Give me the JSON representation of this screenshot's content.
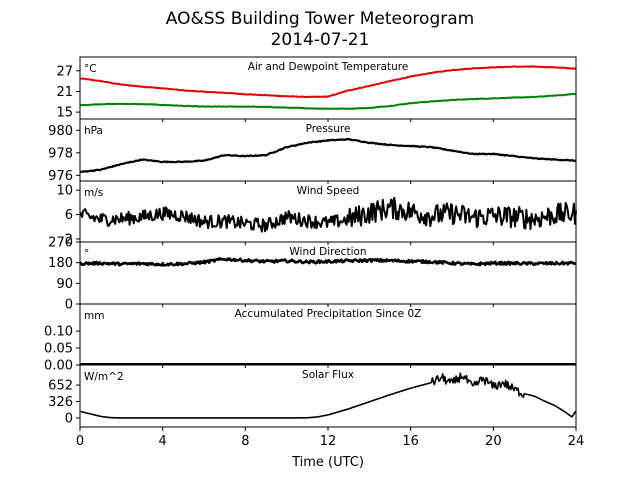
{
  "figure": {
    "title": "AO&SS Building Tower Meteorogram",
    "subtitle": "2014-07-21",
    "xlabel": "Time (UTC)",
    "x_ticks": [
      "0",
      "4",
      "8",
      "12",
      "16",
      "20",
      "24"
    ]
  },
  "chart_data": [
    {
      "type": "line",
      "title": "Air and Dewpoint Temperature",
      "unit": "°C",
      "xlim": [
        0,
        24
      ],
      "ylim": [
        13,
        31
      ],
      "yticks": [
        15,
        21,
        27
      ],
      "ytick_labels": [
        "15",
        "21",
        "27"
      ],
      "series": [
        {
          "color": "#e00000",
          "x": [
            0,
            1,
            2,
            3,
            4,
            5,
            6,
            7,
            8,
            9,
            10,
            11,
            12,
            13,
            14,
            15,
            16,
            17,
            18,
            19,
            20,
            21,
            22,
            23,
            24
          ],
          "values": [
            24.8,
            24.0,
            23.0,
            22.4,
            21.9,
            21.3,
            20.9,
            20.6,
            20.2,
            19.9,
            19.6,
            19.4,
            19.5,
            21.3,
            22.6,
            24.0,
            25.3,
            26.4,
            27.2,
            27.7,
            28.0,
            28.2,
            28.2,
            28.0,
            27.6
          ]
        },
        {
          "color": "#008000",
          "x": [
            0,
            1,
            2,
            3,
            4,
            5,
            6,
            7,
            8,
            9,
            10,
            11,
            12,
            13,
            14,
            15,
            16,
            17,
            18,
            19,
            20,
            21,
            22,
            23,
            24
          ],
          "values": [
            17.0,
            17.3,
            17.4,
            17.3,
            17.1,
            16.8,
            16.6,
            16.6,
            16.6,
            16.5,
            16.3,
            16.1,
            16.0,
            16.0,
            16.2,
            16.8,
            17.6,
            18.1,
            18.5,
            18.8,
            19.0,
            19.2,
            19.4,
            19.8,
            20.3
          ]
        }
      ]
    },
    {
      "type": "line",
      "title": "Pressure",
      "unit": "hPa",
      "xlim": [
        0,
        24
      ],
      "ylim": [
        975.5,
        981.0
      ],
      "yticks": [
        976,
        978,
        980
      ],
      "ytick_labels": [
        "976",
        "978",
        "980"
      ],
      "series": [
        {
          "color": "#000000",
          "x": [
            0,
            1,
            2,
            3,
            4,
            5,
            6,
            7,
            8,
            9,
            10,
            11,
            12,
            13,
            14,
            15,
            16,
            17,
            18,
            19,
            20,
            21,
            22,
            23,
            24
          ],
          "values": [
            976.3,
            976.5,
            977.0,
            977.4,
            977.2,
            977.2,
            977.3,
            977.8,
            977.7,
            977.8,
            978.5,
            978.9,
            979.1,
            979.2,
            978.9,
            978.7,
            978.6,
            978.5,
            978.2,
            977.9,
            977.9,
            977.7,
            977.5,
            977.4,
            977.3
          ]
        }
      ]
    },
    {
      "type": "line",
      "title": "Wind Speed",
      "unit": "m/s",
      "xlim": [
        0,
        24
      ],
      "ylim": [
        1.5,
        11.5
      ],
      "yticks": [
        2,
        6,
        10
      ],
      "ytick_labels": [
        "2",
        "6",
        "10"
      ],
      "series": [
        {
          "color": "#000000",
          "x": [
            0,
            1,
            2,
            3,
            4,
            5,
            6,
            7,
            8,
            9,
            10,
            11,
            12,
            13,
            14,
            15,
            16,
            17,
            18,
            19,
            20,
            21,
            22,
            23,
            24
          ],
          "values": [
            6.0,
            5.2,
            5.3,
            5.6,
            6.2,
            5.8,
            4.8,
            4.9,
            4.5,
            4.2,
            5.6,
            5.0,
            4.6,
            5.2,
            6.3,
            7.1,
            6.5,
            5.8,
            6.2,
            5.5,
            5.8,
            5.6,
            5.3,
            6.0,
            6.2
          ]
        }
      ]
    },
    {
      "type": "line",
      "title": "Wind Direction",
      "unit": "°",
      "xlim": [
        0,
        24
      ],
      "ylim": [
        0,
        270
      ],
      "yticks": [
        0,
        90,
        180,
        270
      ],
      "ytick_labels": [
        "0",
        "90",
        "180",
        "270"
      ],
      "series": [
        {
          "color": "#000000",
          "x": [
            0,
            1,
            2,
            3,
            4,
            5,
            6,
            7,
            8,
            9,
            10,
            11,
            12,
            13,
            14,
            15,
            16,
            17,
            18,
            19,
            20,
            21,
            22,
            23,
            24
          ],
          "values": [
            176,
            178,
            174,
            176,
            173,
            175,
            182,
            196,
            190,
            185,
            188,
            183,
            185,
            188,
            190,
            189,
            186,
            184,
            178,
            173,
            178,
            177,
            176,
            177,
            178
          ]
        }
      ]
    },
    {
      "type": "line",
      "title": "Accumulated Precipitation Since 0Z",
      "unit": "mm",
      "xlim": [
        0,
        24
      ],
      "ylim": [
        0,
        0.18
      ],
      "yticks": [
        0.0,
        0.05,
        0.1
      ],
      "ytick_labels": [
        "0.00",
        "0.05",
        "0.10"
      ],
      "series": [
        {
          "color": "#000000",
          "x": [
            0,
            24
          ],
          "values": [
            0.0,
            0.0
          ]
        }
      ]
    },
    {
      "type": "line",
      "title": "Solar Flux",
      "unit": "W/m^2",
      "xlim": [
        0,
        24
      ],
      "ylim": [
        -180,
        1050
      ],
      "yticks": [
        0,
        326,
        652
      ],
      "ytick_labels": [
        "0",
        "326",
        "652"
      ],
      "series": [
        {
          "color": "#000000",
          "x": [
            0,
            0.5,
            1,
            1.5,
            2,
            4,
            6,
            8,
            10,
            11,
            11.5,
            12,
            13,
            14,
            15,
            16,
            17,
            17.5,
            18,
            18.5,
            19,
            19.5,
            20,
            20.5,
            21,
            21.5,
            22,
            22.5,
            23,
            23.5,
            23.8,
            24
          ],
          "values": [
            130,
            80,
            30,
            5,
            0,
            0,
            0,
            0,
            0,
            3,
            20,
            60,
            180,
            320,
            460,
            590,
            700,
            800,
            680,
            850,
            600,
            780,
            620,
            700,
            560,
            480,
            430,
            330,
            240,
            110,
            20,
            140
          ]
        }
      ]
    }
  ]
}
